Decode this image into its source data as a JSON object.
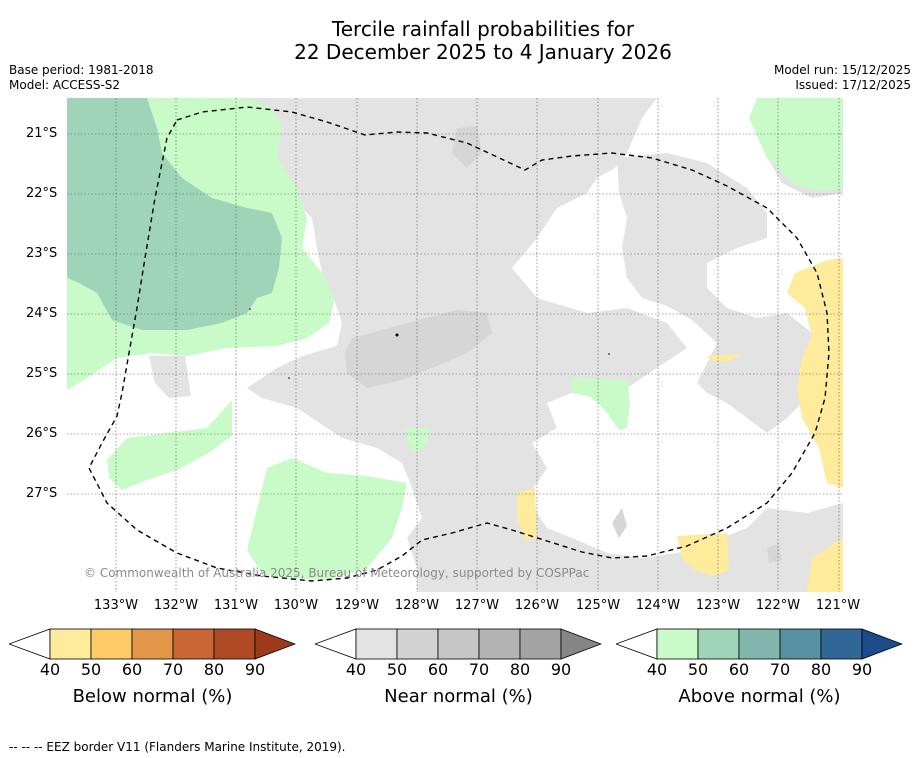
{
  "title": {
    "line1": "Tercile rainfall probabilities for",
    "line2": "22 December 2025 to 4 January 2026"
  },
  "meta": {
    "base_period": "Base period: 1981-2018",
    "model": "Model: ACCESS-S2",
    "model_run": "Model run: 15/12/2025",
    "issued": "Issued: 17/12/2025"
  },
  "map": {
    "lat_labels": [
      "21°S",
      "22°S",
      "23°S",
      "24°S",
      "25°S",
      "26°S",
      "27°S"
    ],
    "lon_labels": [
      "133°W",
      "132°W",
      "131°W",
      "130°W",
      "129°W",
      "128°W",
      "127°W",
      "126°W",
      "125°W",
      "124°W",
      "123°W",
      "122°W",
      "121°W"
    ],
    "copyright": "© Commonwealth of Australia 2025, Bureau of Meteorology, supported by COSPPac"
  },
  "colorbars": [
    {
      "label": "Below normal (%)",
      "ticks": [
        "40",
        "50",
        "60",
        "70",
        "80",
        "90"
      ],
      "colors": [
        "#ffffff",
        "#feeb9c",
        "#fdcb65",
        "#e29649",
        "#ca6534",
        "#b04a25",
        "#9c3a1b"
      ]
    },
    {
      "label": "Near normal (%)",
      "ticks": [
        "40",
        "50",
        "60",
        "70",
        "80",
        "90"
      ],
      "colors": [
        "#ffffff",
        "#e3e3e3",
        "#d3d3d3",
        "#c6c6c6",
        "#b3b3b3",
        "#a3a3a3",
        "#868686"
      ]
    },
    {
      "label": "Above normal (%)",
      "ticks": [
        "40",
        "50",
        "60",
        "70",
        "80",
        "90"
      ],
      "colors": [
        "#ffffff",
        "#c8fbc8",
        "#a0d4b9",
        "#82b6ac",
        "#5790a0",
        "#316797",
        "#1d4b89"
      ]
    }
  ],
  "footer": "--  --  -- EEZ border V11 (Flanders Marine Institute, 2019)."
}
